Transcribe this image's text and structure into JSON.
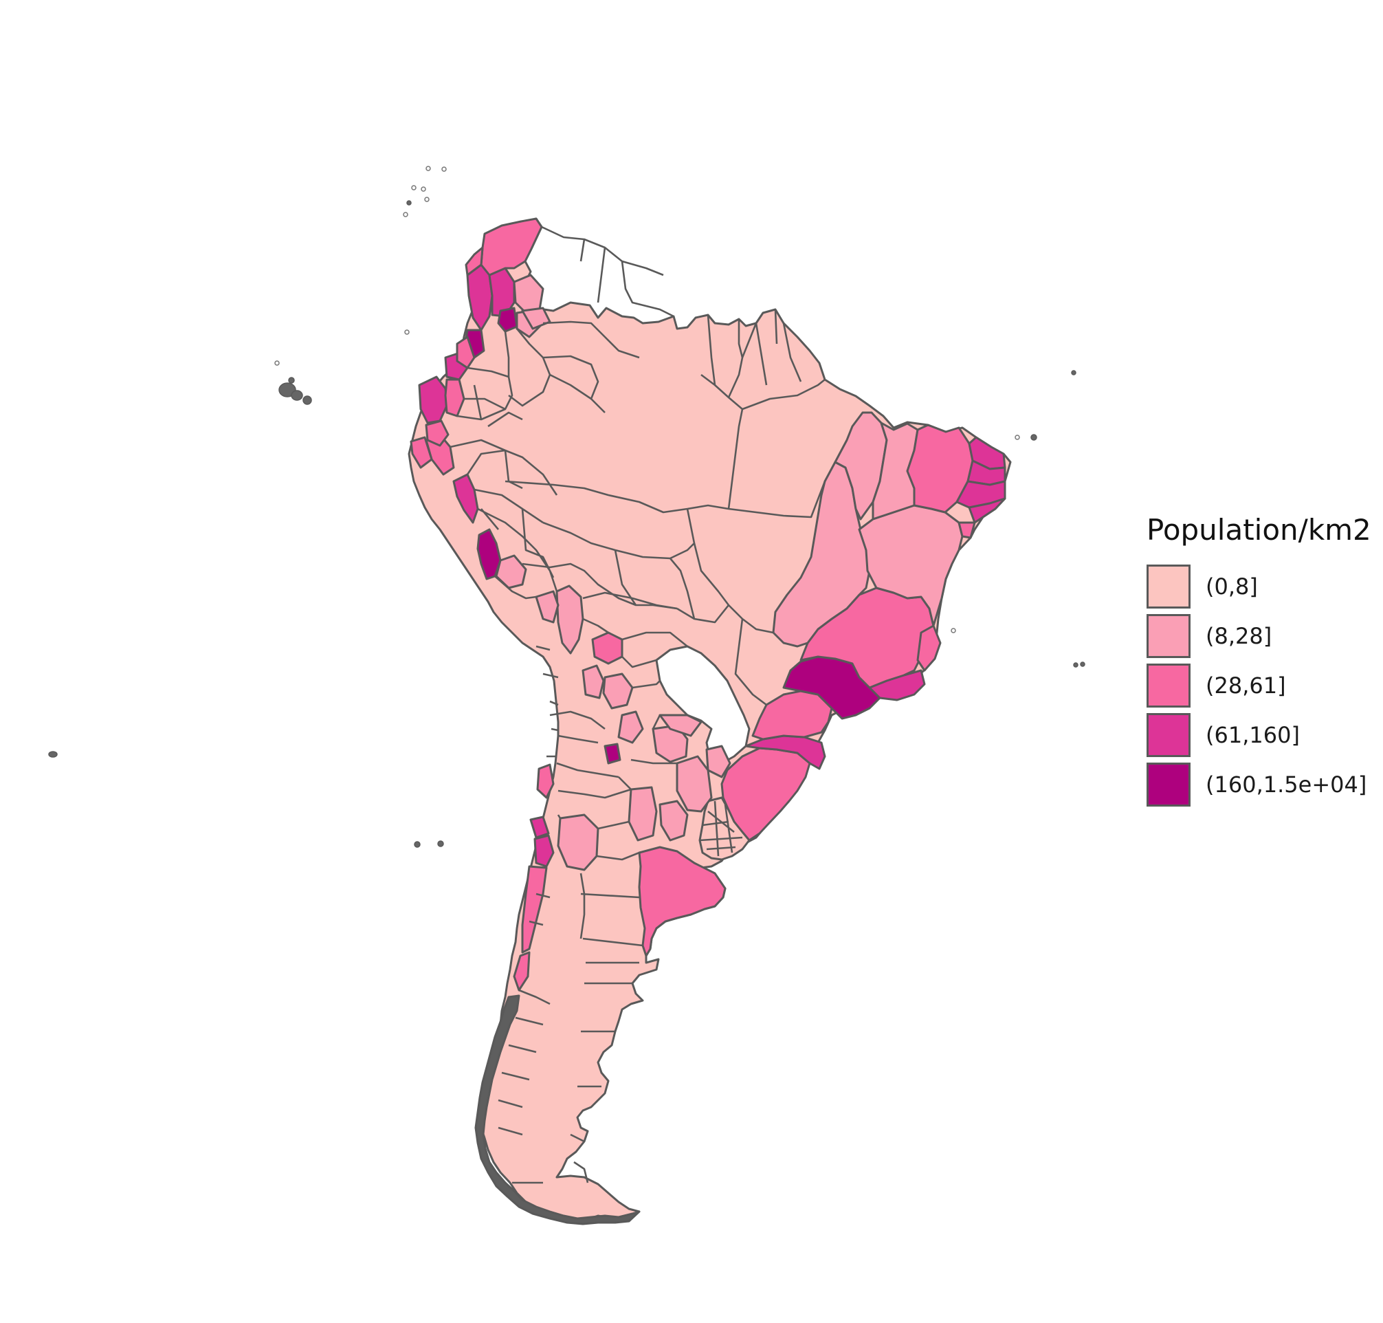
{
  "legend": {
    "title": "Population/km2",
    "classes": [
      {
        "label": "(0,8]",
        "color": "#fcc5c0"
      },
      {
        "label": "(8,28]",
        "color": "#fa9fb5"
      },
      {
        "label": "(28,61]",
        "color": "#f768a1"
      },
      {
        "label": "(61,160]",
        "color": "#dd3497"
      },
      {
        "label": "(160,1.5e+04]",
        "color": "#ae017e"
      }
    ]
  },
  "map": {
    "subject": "South America administrative regions",
    "border_color": "#595959",
    "background_color": "#ffffff"
  }
}
